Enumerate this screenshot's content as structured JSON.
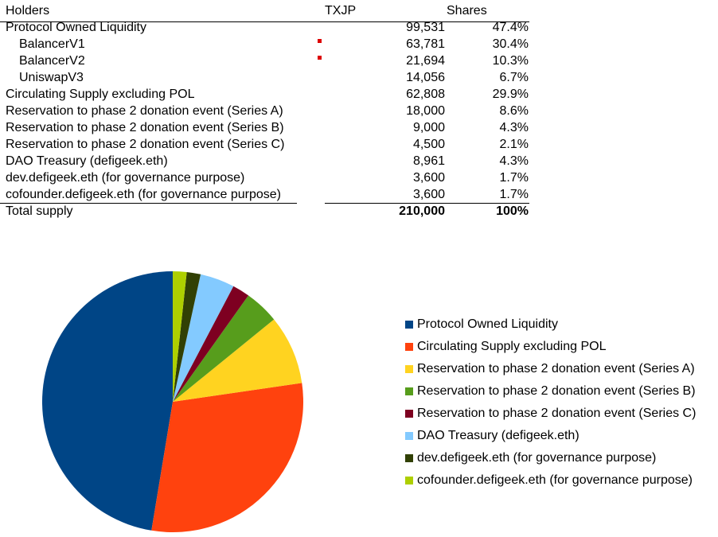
{
  "table": {
    "headers": {
      "holders": "Holders",
      "txjp": "TXJP",
      "shares": "Shares"
    },
    "rows": [
      {
        "name": "Protocol Owned Liquidity",
        "value": "99,531",
        "share": "47.4%",
        "sub": false,
        "mark": false
      },
      {
        "name": "BalancerV1",
        "value": "63,781",
        "share": "30.4%",
        "sub": true,
        "mark": true
      },
      {
        "name": "BalancerV2",
        "value": "21,694",
        "share": "10.3%",
        "sub": true,
        "mark": true
      },
      {
        "name": "UniswapV3",
        "value": "14,056",
        "share": "6.7%",
        "sub": true,
        "mark": false
      },
      {
        "name": "Circulating Supply excluding POL",
        "value": "62,808",
        "share": "29.9%",
        "sub": false,
        "mark": false
      },
      {
        "name": "Reservation to phase 2 donation event (Series A)",
        "value": "18,000",
        "share": "8.6%",
        "sub": false,
        "mark": false
      },
      {
        "name": "Reservation to phase 2 donation event (Series B)",
        "value": "9,000",
        "share": "4.3%",
        "sub": false,
        "mark": false
      },
      {
        "name": "Reservation to phase 2 donation event (Series C)",
        "value": "4,500",
        "share": "2.1%",
        "sub": false,
        "mark": false
      },
      {
        "name": "DAO Treasury (defigeek.eth)",
        "value": "8,961",
        "share": "4.3%",
        "sub": false,
        "mark": false
      },
      {
        "name": "dev.defigeek.eth (for governance purpose)",
        "value": "3,600",
        "share": "1.7%",
        "sub": false,
        "mark": false
      },
      {
        "name": "cofounder.defigeek.eth (for governance purpose)",
        "value": "3,600",
        "share": "1.7%",
        "sub": false,
        "mark": false
      }
    ],
    "total": {
      "name": "Total supply",
      "value": "210,000",
      "share": "100%"
    }
  },
  "chart_data": {
    "type": "pie",
    "start_angle_deg": 0,
    "direction": "counterclockwise",
    "legend_position": "right",
    "categories": [
      "Protocol Owned Liquidity",
      "Circulating Supply excluding POL",
      "Reservation to phase 2 donation event (Series A)",
      "Reservation to phase 2 donation event (Series B)",
      "Reservation to phase 2 donation event (Series C)",
      "DAO Treasury (defigeek.eth)",
      "dev.defigeek.eth (for governance purpose)",
      "cofounder.defigeek.eth (for governance purpose)"
    ],
    "values": [
      99531,
      62808,
      18000,
      9000,
      4500,
      8961,
      3600,
      3600
    ],
    "colors": [
      "#004586",
      "#ff420e",
      "#ffd320",
      "#579d1c",
      "#7e0021",
      "#83caff",
      "#314004",
      "#aecf00"
    ]
  }
}
